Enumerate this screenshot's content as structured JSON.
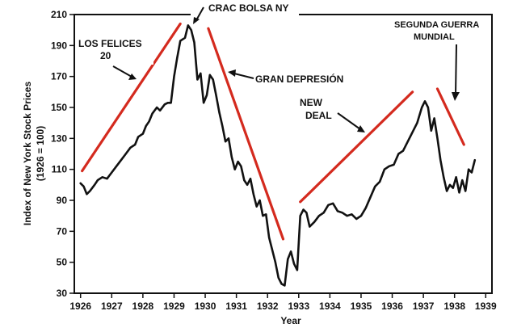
{
  "chart_data": {
    "type": "line",
    "xlabel": "Year",
    "ylabel_lines": [
      "Index of New York Stock Prices",
      "(1926 = 100)"
    ],
    "xlim": [
      1925.8,
      1939.2
    ],
    "ylim": [
      30,
      210
    ],
    "xticks": [
      1926,
      1927,
      1928,
      1929,
      1930,
      1931,
      1932,
      1933,
      1934,
      1935,
      1936,
      1937,
      1938,
      1939
    ],
    "yticks": [
      30,
      50,
      70,
      90,
      110,
      130,
      150,
      170,
      190,
      210
    ],
    "grid": false,
    "series": [
      {
        "color": "#111111",
        "x": [
          1926.0,
          1926.1,
          1926.2,
          1926.3,
          1926.45,
          1926.55,
          1926.7,
          1926.85,
          1927.0,
          1927.15,
          1927.3,
          1927.45,
          1927.6,
          1927.75,
          1927.85,
          1928.0,
          1928.1,
          1928.2,
          1928.3,
          1928.45,
          1928.55,
          1928.7,
          1928.8,
          1928.9,
          1929.0,
          1929.1,
          1929.2,
          1929.35,
          1929.45,
          1929.55,
          1929.65,
          1929.75,
          1929.85,
          1929.95,
          1930.05,
          1930.15,
          1930.25,
          1930.35,
          1930.45,
          1930.55,
          1930.65,
          1930.75,
          1930.85,
          1930.95,
          1931.05,
          1931.15,
          1931.25,
          1931.35,
          1931.45,
          1931.55,
          1931.65,
          1931.75,
          1931.85,
          1931.95,
          1932.05,
          1932.15,
          1932.25,
          1932.35,
          1932.45,
          1932.55,
          1932.65,
          1932.75,
          1932.85,
          1932.95,
          1933.05,
          1933.15,
          1933.25,
          1933.35,
          1933.5,
          1933.65,
          1933.8,
          1933.95,
          1934.1,
          1934.25,
          1934.4,
          1934.55,
          1934.7,
          1934.85,
          1935.0,
          1935.15,
          1935.3,
          1935.45,
          1935.6,
          1935.75,
          1935.9,
          1936.05,
          1936.2,
          1936.35,
          1936.5,
          1936.65,
          1936.8,
          1936.95,
          1937.05,
          1937.15,
          1937.25,
          1937.35,
          1937.45,
          1937.55,
          1937.65,
          1937.75,
          1937.85,
          1937.95,
          1938.05,
          1938.15,
          1938.25,
          1938.35,
          1938.45,
          1938.55,
          1938.65
        ],
        "y": [
          101,
          99,
          94,
          96,
          100,
          103,
          105,
          104,
          108,
          112,
          116,
          120,
          124,
          126,
          131,
          133,
          138,
          141,
          146,
          150,
          148,
          152,
          153,
          153,
          170,
          182,
          193,
          195,
          203,
          200,
          192,
          168,
          172,
          153,
          158,
          171,
          168,
          158,
          147,
          138,
          128,
          130,
          118,
          110,
          115,
          112,
          103,
          100,
          104,
          94,
          86,
          90,
          80,
          81,
          66,
          58,
          50,
          40,
          36,
          35,
          52,
          57,
          49,
          45,
          80,
          84,
          82,
          73,
          76,
          80,
          82,
          87,
          88,
          83,
          82,
          80,
          81,
          78,
          80,
          85,
          92,
          99,
          102,
          110,
          112,
          113,
          120,
          122,
          128,
          134,
          140,
          150,
          154,
          150,
          135,
          143,
          130,
          116,
          105,
          96,
          100,
          98,
          105,
          95,
          103,
          96,
          110,
          108,
          116
        ]
      }
    ],
    "annotations": [
      {
        "lines": [
          "CRAC BOLSA NY"
        ]
      },
      {
        "lines": [
          "LOS FELICES",
          "20"
        ]
      },
      {
        "lines": [
          "GRAN DEPRESIÓN"
        ]
      },
      {
        "lines": [
          "NEW",
          "DEAL"
        ]
      },
      {
        "lines": [
          "SEGUNDA GUERRA",
          "MUNDIAL"
        ]
      }
    ],
    "trend_lines": [
      {
        "color": "#d42a1e",
        "from": [
          1926.05,
          109
        ],
        "to": [
          1929.2,
          204
        ]
      },
      {
        "color": "#d42a1e",
        "from": [
          1930.1,
          201
        ],
        "to": [
          1932.5,
          65
        ]
      },
      {
        "color": "#d42a1e",
        "from": [
          1933.05,
          89
        ],
        "to": [
          1936.65,
          160
        ]
      },
      {
        "color": "#d42a1e",
        "from": [
          1937.45,
          162
        ],
        "to": [
          1938.3,
          126
        ]
      }
    ]
  }
}
